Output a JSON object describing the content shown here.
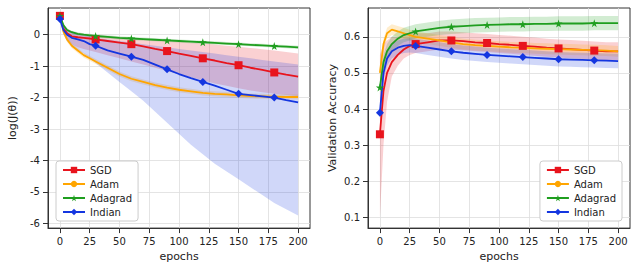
{
  "chart_data": [
    {
      "type": "line",
      "xlabel": "epochs",
      "ylabel": "log(J(θ))",
      "x": [
        0,
        3,
        6,
        10,
        15,
        20,
        25,
        30,
        40,
        50,
        60,
        70,
        80,
        90,
        100,
        110,
        120,
        130,
        140,
        150,
        160,
        170,
        180,
        190,
        200
      ],
      "xlim": [
        -10,
        210
      ],
      "xticks": [
        0,
        25,
        50,
        75,
        100,
        125,
        150,
        175,
        200
      ],
      "ylim": [
        -6.15,
        0.85
      ],
      "yticks": [
        -6,
        -5,
        -4,
        -3,
        -2,
        -1,
        0
      ],
      "grid": true,
      "legend": "lower left",
      "series": [
        {
          "name": "SGD",
          "color": "#e8141d",
          "marker": "square",
          "values": [
            0.6,
            0.2,
            0.05,
            -0.05,
            -0.08,
            -0.1,
            -0.12,
            -0.15,
            -0.2,
            -0.25,
            -0.3,
            -0.37,
            -0.45,
            -0.52,
            -0.6,
            -0.67,
            -0.75,
            -0.82,
            -0.9,
            -0.97,
            -1.05,
            -1.12,
            -1.2,
            -1.27,
            -1.33
          ],
          "lower": [
            0.5,
            0.05,
            -0.15,
            -0.3,
            -0.4,
            -0.45,
            -0.5,
            -0.55,
            -0.65,
            -0.75,
            -0.85,
            -0.95,
            -1.05,
            -1.15,
            -1.25,
            -1.35,
            -1.45,
            -1.55,
            -1.62,
            -1.7,
            -1.77,
            -1.83,
            -1.88,
            -1.92,
            -1.95
          ],
          "upper": [
            0.7,
            0.35,
            0.2,
            0.1,
            0.05,
            0.02,
            0,
            -0.02,
            -0.05,
            -0.08,
            -0.1,
            -0.13,
            -0.16,
            -0.19,
            -0.22,
            -0.25,
            -0.28,
            -0.31,
            -0.35,
            -0.38,
            -0.42,
            -0.46,
            -0.5,
            -0.55,
            -0.6
          ]
        },
        {
          "name": "Adam",
          "color": "#ffa500",
          "marker": "none",
          "values": [
            0.7,
            0.1,
            -0.15,
            -0.35,
            -0.5,
            -0.65,
            -0.75,
            -0.85,
            -1.05,
            -1.25,
            -1.4,
            -1.5,
            -1.6,
            -1.68,
            -1.75,
            -1.8,
            -1.85,
            -1.88,
            -1.9,
            -1.93,
            -1.95,
            -1.96,
            -1.97,
            -1.98,
            -1.98
          ],
          "lower": [
            0.62,
            0.02,
            -0.23,
            -0.43,
            -0.58,
            -0.73,
            -0.83,
            -0.93,
            -1.13,
            -1.33,
            -1.48,
            -1.58,
            -1.68,
            -1.76,
            -1.83,
            -1.88,
            -1.93,
            -1.96,
            -1.98,
            -2.01,
            -2.03,
            -2.04,
            -2.05,
            -2.06,
            -2.06
          ],
          "upper": [
            0.78,
            0.18,
            -0.07,
            -0.27,
            -0.42,
            -0.57,
            -0.67,
            -0.77,
            -0.97,
            -1.17,
            -1.32,
            -1.42,
            -1.52,
            -1.6,
            -1.67,
            -1.72,
            -1.77,
            -1.8,
            -1.82,
            -1.85,
            -1.87,
            -1.88,
            -1.89,
            -1.9,
            -1.9
          ]
        },
        {
          "name": "Adagrad",
          "color": "#1f9e1f",
          "marker": "star",
          "values": [
            0.6,
            0.3,
            0.15,
            0.08,
            0.03,
            0,
            -0.02,
            -0.04,
            -0.07,
            -0.1,
            -0.12,
            -0.14,
            -0.16,
            -0.18,
            -0.2,
            -0.22,
            -0.24,
            -0.26,
            -0.28,
            -0.3,
            -0.32,
            -0.34,
            -0.36,
            -0.38,
            -0.4
          ],
          "lower": [
            0.55,
            0.25,
            0.1,
            0.03,
            -0.02,
            -0.05,
            -0.07,
            -0.09,
            -0.12,
            -0.15,
            -0.17,
            -0.19,
            -0.21,
            -0.23,
            -0.25,
            -0.27,
            -0.29,
            -0.31,
            -0.33,
            -0.35,
            -0.37,
            -0.39,
            -0.41,
            -0.43,
            -0.45
          ],
          "upper": [
            0.65,
            0.35,
            0.2,
            0.13,
            0.08,
            0.05,
            0.03,
            0.01,
            -0.02,
            -0.05,
            -0.07,
            -0.09,
            -0.11,
            -0.13,
            -0.15,
            -0.17,
            -0.19,
            -0.21,
            -0.23,
            -0.25,
            -0.27,
            -0.29,
            -0.31,
            -0.33,
            -0.35
          ]
        },
        {
          "name": "Indian",
          "color": "#1436e0",
          "marker": "diamond",
          "values": [
            0.5,
            0.15,
            0,
            -0.1,
            -0.15,
            -0.2,
            -0.3,
            -0.35,
            -0.5,
            -0.6,
            -0.7,
            -0.8,
            -0.95,
            -1.1,
            -1.25,
            -1.38,
            -1.5,
            -1.62,
            -1.75,
            -1.88,
            -1.92,
            -1.96,
            -2,
            -2.08,
            -2.15
          ],
          "lower": [
            0.4,
            0,
            -0.2,
            -0.35,
            -0.5,
            -0.6,
            -0.75,
            -0.9,
            -1.2,
            -1.5,
            -1.8,
            -2.1,
            -2.45,
            -2.8,
            -3.15,
            -3.5,
            -3.8,
            -4.1,
            -4.35,
            -4.6,
            -4.85,
            -5.1,
            -5.35,
            -5.55,
            -5.75
          ],
          "upper": [
            0.6,
            0.3,
            0.15,
            0.1,
            0.05,
            0,
            -0.05,
            -0.1,
            -0.15,
            -0.2,
            -0.25,
            -0.3,
            -0.35,
            -0.4,
            -0.45,
            -0.5,
            -0.55,
            -0.6,
            -0.65,
            -0.7,
            -0.75,
            -0.8,
            -0.85,
            -0.9,
            -0.95
          ]
        }
      ]
    },
    {
      "type": "line",
      "xlabel": "epochs",
      "ylabel": "Validation Accuracy",
      "x": [
        0,
        3,
        6,
        10,
        15,
        20,
        25,
        30,
        40,
        50,
        60,
        70,
        80,
        90,
        100,
        110,
        120,
        130,
        140,
        150,
        160,
        170,
        180,
        190,
        200
      ],
      "xlim": [
        -10,
        210
      ],
      "xticks": [
        0,
        25,
        50,
        75,
        100,
        125,
        150,
        175,
        200
      ],
      "ylim": [
        0.07,
        0.68
      ],
      "yticks": [
        0.1,
        0.2,
        0.3,
        0.4,
        0.5,
        0.6
      ],
      "grid": true,
      "legend": "lower right",
      "series": [
        {
          "name": "SGD",
          "color": "#e8141d",
          "marker": "square",
          "values": [
            0.33,
            0.45,
            0.5,
            0.53,
            0.55,
            0.565,
            0.575,
            0.58,
            0.585,
            0.59,
            0.59,
            0.588,
            0.585,
            0.583,
            0.58,
            0.578,
            0.575,
            0.573,
            0.57,
            0.568,
            0.566,
            0.564,
            0.562,
            0.56,
            0.56
          ],
          "lower": [
            0.1,
            0.3,
            0.42,
            0.49,
            0.52,
            0.54,
            0.55,
            0.555,
            0.56,
            0.565,
            0.565,
            0.563,
            0.56,
            0.558,
            0.555,
            0.553,
            0.55,
            0.548,
            0.545,
            0.543,
            0.541,
            0.539,
            0.537,
            0.535,
            0.535
          ],
          "upper": [
            0.55,
            0.58,
            0.59,
            0.6,
            0.6,
            0.605,
            0.61,
            0.61,
            0.61,
            0.615,
            0.615,
            0.613,
            0.61,
            0.608,
            0.605,
            0.603,
            0.6,
            0.598,
            0.595,
            0.593,
            0.591,
            0.589,
            0.587,
            0.585,
            0.585
          ]
        },
        {
          "name": "Adam",
          "color": "#ffa500",
          "marker": "none",
          "values": [
            0.5,
            0.58,
            0.61,
            0.62,
            0.615,
            0.61,
            0.605,
            0.6,
            0.595,
            0.59,
            0.585,
            0.58,
            0.577,
            0.575,
            0.573,
            0.571,
            0.57,
            0.568,
            0.567,
            0.566,
            0.565,
            0.564,
            0.563,
            0.562,
            0.56
          ],
          "lower": [
            0.485,
            0.565,
            0.595,
            0.605,
            0.6,
            0.595,
            0.59,
            0.585,
            0.58,
            0.575,
            0.57,
            0.565,
            0.562,
            0.56,
            0.558,
            0.556,
            0.555,
            0.553,
            0.552,
            0.551,
            0.55,
            0.549,
            0.548,
            0.547,
            0.545
          ],
          "upper": [
            0.515,
            0.595,
            0.625,
            0.635,
            0.63,
            0.625,
            0.62,
            0.615,
            0.61,
            0.605,
            0.6,
            0.595,
            0.592,
            0.59,
            0.588,
            0.586,
            0.585,
            0.583,
            0.582,
            0.581,
            0.58,
            0.579,
            0.578,
            0.577,
            0.575
          ]
        },
        {
          "name": "Adagrad",
          "color": "#1f9e1f",
          "marker": "star",
          "values": [
            0.46,
            0.53,
            0.56,
            0.58,
            0.595,
            0.605,
            0.61,
            0.615,
            0.62,
            0.625,
            0.628,
            0.63,
            0.632,
            0.633,
            0.634,
            0.635,
            0.635,
            0.636,
            0.636,
            0.637,
            0.637,
            0.637,
            0.638,
            0.638,
            0.638
          ],
          "lower": [
            0.44,
            0.51,
            0.54,
            0.56,
            0.575,
            0.585,
            0.59,
            0.595,
            0.6,
            0.605,
            0.608,
            0.61,
            0.612,
            0.613,
            0.614,
            0.615,
            0.615,
            0.616,
            0.616,
            0.617,
            0.617,
            0.617,
            0.618,
            0.618,
            0.618
          ],
          "upper": [
            0.48,
            0.55,
            0.58,
            0.6,
            0.615,
            0.625,
            0.63,
            0.635,
            0.64,
            0.645,
            0.648,
            0.65,
            0.652,
            0.653,
            0.654,
            0.655,
            0.655,
            0.656,
            0.656,
            0.657,
            0.657,
            0.657,
            0.658,
            0.658,
            0.658
          ]
        },
        {
          "name": "Indian",
          "color": "#1436e0",
          "marker": "diamond",
          "values": [
            0.39,
            0.5,
            0.54,
            0.56,
            0.57,
            0.575,
            0.577,
            0.575,
            0.57,
            0.565,
            0.56,
            0.556,
            0.553,
            0.55,
            0.548,
            0.546,
            0.544,
            0.542,
            0.54,
            0.538,
            0.537,
            0.536,
            0.535,
            0.534,
            0.533
          ],
          "lower": [
            0.37,
            0.48,
            0.52,
            0.54,
            0.55,
            0.555,
            0.557,
            0.555,
            0.55,
            0.545,
            0.54,
            0.536,
            0.533,
            0.53,
            0.528,
            0.526,
            0.524,
            0.522,
            0.52,
            0.518,
            0.517,
            0.516,
            0.515,
            0.514,
            0.513
          ],
          "upper": [
            0.41,
            0.52,
            0.56,
            0.58,
            0.59,
            0.595,
            0.597,
            0.595,
            0.59,
            0.585,
            0.58,
            0.576,
            0.573,
            0.57,
            0.568,
            0.566,
            0.564,
            0.562,
            0.56,
            0.558,
            0.557,
            0.556,
            0.555,
            0.554,
            0.553
          ]
        }
      ]
    }
  ]
}
